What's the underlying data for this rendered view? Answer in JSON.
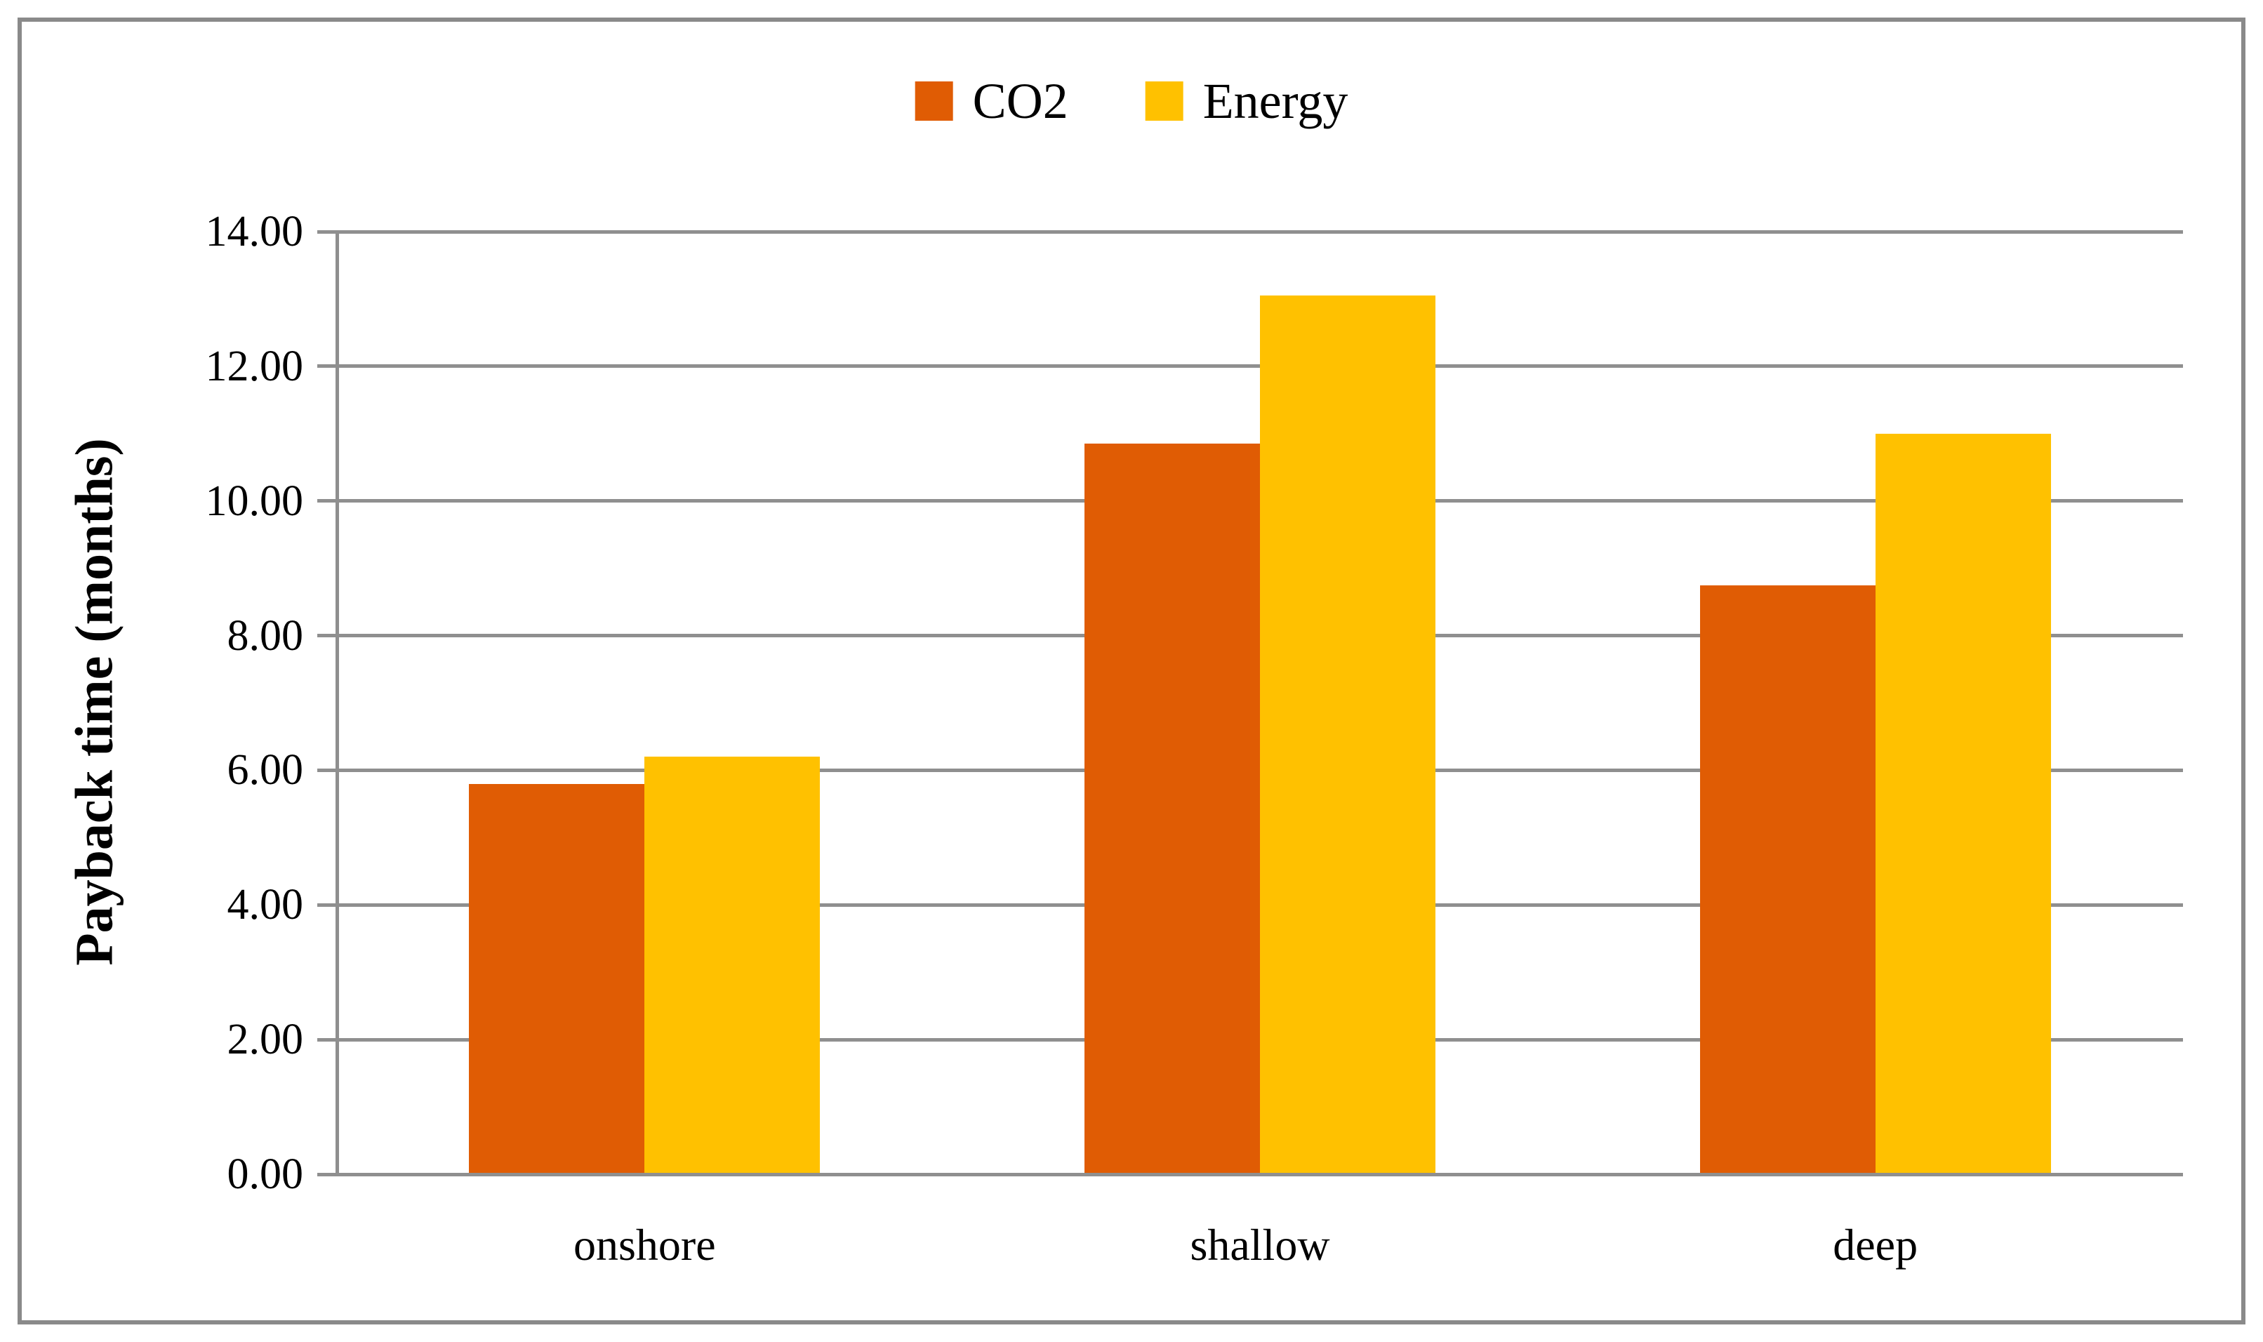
{
  "chart_data": {
    "type": "bar",
    "title": "",
    "categories": [
      "onshore",
      "shallow",
      "deep"
    ],
    "series": [
      {
        "name": "CO2",
        "color": "#E05C04",
        "values": [
          5.8,
          10.85,
          8.75
        ]
      },
      {
        "name": "Energy",
        "color": "#FFC100",
        "values": [
          6.2,
          13.05,
          11.0
        ]
      }
    ],
    "ylabel": "Payback time (months)",
    "ylim": [
      0,
      14
    ],
    "ytick_step": 2,
    "ytick_decimals": 2,
    "grid": true,
    "legend_position": "top-center",
    "colors": {
      "gridline": "#8F8F8F",
      "frame_border": "#8A8A8A",
      "text": "#000000",
      "background": "#FFFFFF"
    }
  }
}
